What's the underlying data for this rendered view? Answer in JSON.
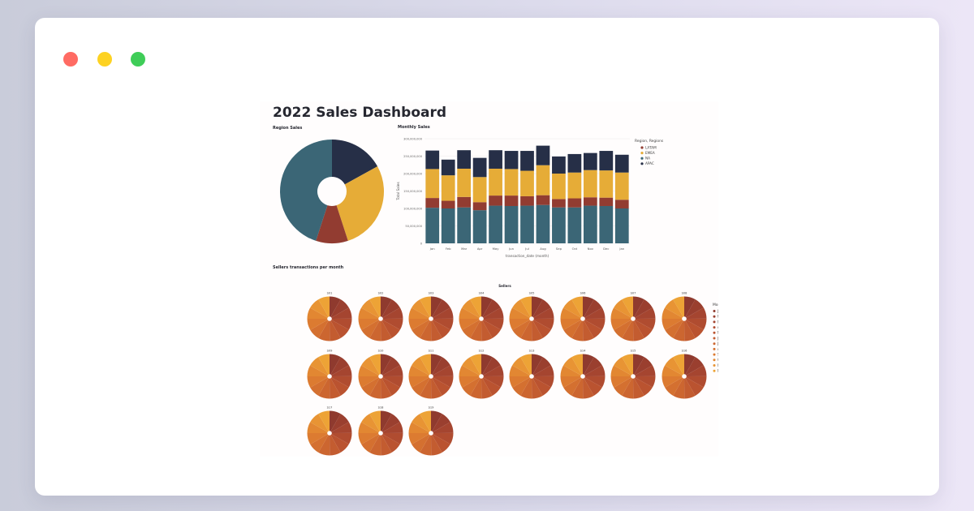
{
  "window": {
    "controls": [
      "close",
      "minimize",
      "maximize"
    ],
    "colors": {
      "close": "#ff6b63",
      "minimize": "#fdd222",
      "maximize": "#3fcd58"
    }
  },
  "dashboard": {
    "title": "2022 Sales Dashboard",
    "region_title": "Region Sales",
    "monthly_title": "Monthly Sales",
    "sellers_title": "Sellers transactions per month"
  },
  "chart_data": [
    {
      "type": "pie",
      "title": "Region Sales",
      "donut": true,
      "labels": [
        "APAC",
        "EMEA",
        "LATAM",
        "NA"
      ],
      "values": [
        17,
        28,
        10,
        45
      ],
      "colors": [
        "#262f47",
        "#e6ac37",
        "#923c31",
        "#3b6676"
      ]
    },
    {
      "type": "bar",
      "stacked": true,
      "title": "Monthly Sales",
      "xlabel": "transaction_date (month)",
      "ylabel": "Total Sales",
      "y_ticks": [
        "0",
        "50,000,000",
        "100,000,000",
        "150,000,000",
        "200,000,000",
        "250,000,000",
        "300,000,000"
      ],
      "ylim": [
        0,
        300000000
      ],
      "categories": [
        "Jan",
        "Feb",
        "Mar",
        "Apr",
        "May",
        "Jun",
        "Jul",
        "Aug",
        "Sep",
        "Oct",
        "Nov",
        "Dec",
        "Jan"
      ],
      "legend_title": "Region, Regions",
      "legend_position": "right",
      "series": [
        {
          "name": "NA",
          "color": "#3b6676",
          "values": [
            102000000,
            100000000,
            103000000,
            95000000,
            108000000,
            107000000,
            108000000,
            110000000,
            103000000,
            103000000,
            108000000,
            107000000,
            100000000
          ]
        },
        {
          "name": "LATAM",
          "color": "#923c31",
          "values": [
            28000000,
            22000000,
            30000000,
            23000000,
            29000000,
            30000000,
            27000000,
            28000000,
            24000000,
            26000000,
            24000000,
            24000000,
            25000000
          ]
        },
        {
          "name": "EMEA",
          "color": "#e6ac37",
          "values": [
            83000000,
            73000000,
            81000000,
            72000000,
            77000000,
            76000000,
            73000000,
            86000000,
            73000000,
            74000000,
            78000000,
            78000000,
            78000000
          ]
        },
        {
          "name": "APAC",
          "color": "#262f47",
          "values": [
            53000000,
            45000000,
            53000000,
            55000000,
            53000000,
            52000000,
            57000000,
            56000000,
            49000000,
            53000000,
            49000000,
            56000000,
            51000000
          ]
        }
      ]
    },
    {
      "type": "pie",
      "donut": true,
      "title": "Sellers",
      "legend_title": "Month",
      "legend_position": "right",
      "labels": [
        "Jan",
        "Feb",
        "Mar",
        "Apr",
        "May",
        "Jun",
        "Jul",
        "Aug",
        "Sep",
        "Oct",
        "Nov",
        "Dec"
      ],
      "colors": [
        "#8f3a2e",
        "#9a3f2f",
        "#a54530",
        "#b04c30",
        "#ba5330",
        "#c35c30",
        "#cc6630",
        "#d47030",
        "#dc7b31",
        "#e28732",
        "#e89434",
        "#eda336"
      ],
      "facets": [
        "S01",
        "S02",
        "S03",
        "S04",
        "S05",
        "S06",
        "S07",
        "S08",
        "S09",
        "S10",
        "S11",
        "S12",
        "S13",
        "S14",
        "S15",
        "S16",
        "S17",
        "S18",
        "S19"
      ],
      "values": [
        8.3,
        8.4,
        8.2,
        8.3,
        8.5,
        8.2,
        8.4,
        8.3,
        8.4,
        8.2,
        8.4,
        8.4
      ]
    }
  ]
}
